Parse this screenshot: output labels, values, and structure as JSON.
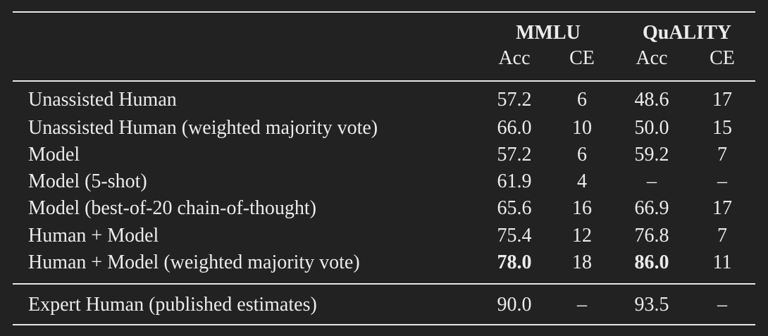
{
  "table": {
    "groups": [
      "MMLU",
      "QuALITY"
    ],
    "columns": [
      "Acc",
      "CE",
      "Acc",
      "CE"
    ],
    "rows": [
      [
        "Unassisted Human",
        "57.2",
        "6",
        "48.6",
        "17"
      ],
      [
        "Unassisted Human (weighted majority vote)",
        "66.0",
        "10",
        "50.0",
        "15"
      ],
      [
        "Model",
        "57.2",
        "6",
        "59.2",
        "7"
      ],
      [
        "Model (5-shot)",
        "61.9",
        "4",
        "–",
        "–"
      ],
      [
        "Model (best-of-20 chain-of-thought)",
        "65.6",
        "16",
        "66.9",
        "17"
      ],
      [
        "Human + Model",
        "75.4",
        "12",
        "76.8",
        "7"
      ],
      [
        "Human + Model (weighted majority vote)",
        "78.0",
        "18",
        "86.0",
        "11"
      ]
    ],
    "footer_rows": [
      [
        "Expert Human (published estimates)",
        "90.0",
        "–",
        "93.5",
        "–"
      ]
    ]
  }
}
